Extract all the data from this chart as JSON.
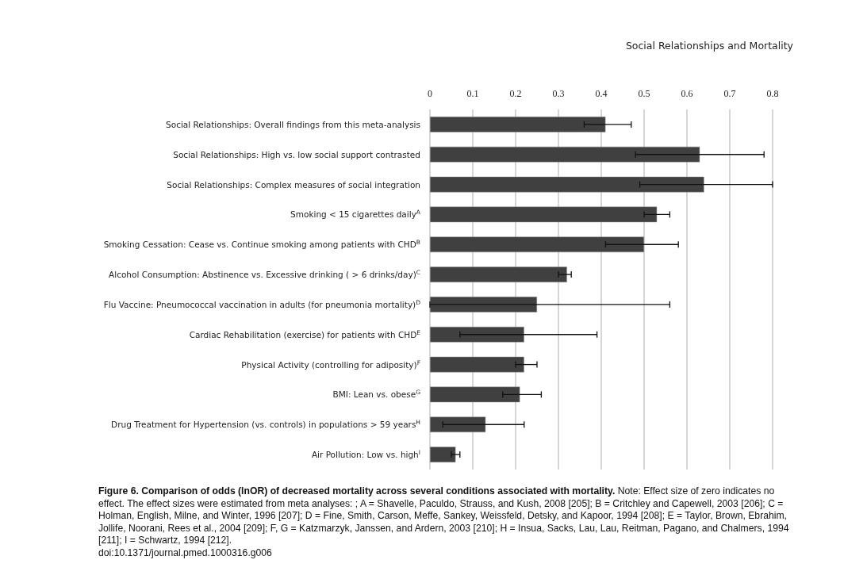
{
  "chart_data": {
    "type": "bar",
    "orientation": "horizontal",
    "title": "Figure 6. Comparison of odds (lnOR) of decreased mortality across several conditions associated with mortality.",
    "annotations": [
      "Social Relationships and Mortality",
      "Note: Effect size of zero indicates no effect. The effect sizes were estimated from meta analyses: ; A = Shavelle, Paculdo, Strauss, and Kush, 2008 [205]; B = Critchley and Capewell, 2003 [206]; C = Holman, English, Milne, and Winter, 1996 [207]; D = Fine, Smith, Carson, Meffe, Sankey, Weissfeld, Detsky, and Kapoor, 1994 [208]; E = Taylor, Brown, Ebrahim, Jollife, Noorani, Rees et al., 2004 [209]; F, G = Katzmarzyk, Janssen, and Ardern, 2003 [210]; H = Insua, Sacks, Lau, Lau, Reitman, Pagano, and Chalmers, 1994 [211]; I = Schwartz, 1994 [212].",
      "doi:10.1371/journal.pmed.1000316.g006"
    ],
    "categories": [
      "Social Relationships: Overall findings from this meta-analysis",
      "Social Relationships: High vs. low social support contrasted",
      "Social Relationships: Complex measures of social integration",
      "Smoking < 15 cigarettes daily$^{A}$",
      "Smoking Cessation: Cease vs. Continue smoking among patients with CHD$^{B}$",
      "Alcohol Consumption: Abstinence vs. Excessive drinking ( > 6 drinks/day)$^{C}$",
      "Flu Vaccine: Pneumococcal vaccination in adults (for pneumonia mortality)$^{D}$",
      "Cardiac Rehabilitation (exercise) for patients with CHD$^{E}$",
      "Physical Activity (controlling for adiposity)$^{F}$",
      "BMI: Lean vs. obese$^{G}$",
      "Drug Treatment for Hypertension (vs. controls) in populations > 59 years$^{H}$",
      "Air Pollution: Low vs. high$^{I}$"
    ],
    "values": [
      0.41,
      0.63,
      0.64,
      0.53,
      0.5,
      0.32,
      0.25,
      0.22,
      0.22,
      0.21,
      0.13,
      0.06
    ],
    "errors": [
      [
        0.36,
        0.47
      ],
      [
        0.48,
        0.78
      ],
      [
        0.49,
        0.8
      ],
      [
        0.5,
        0.56
      ],
      [
        0.41,
        0.58
      ],
      [
        0.3,
        0.33
      ],
      [
        0.0,
        0.56
      ],
      [
        0.07,
        0.39
      ],
      [
        0.2,
        0.25
      ],
      [
        0.17,
        0.26
      ],
      [
        0.03,
        0.22
      ],
      [
        0.05,
        0.07
      ]
    ],
    "color": "#404040",
    "xlim": [
      0,
      0.8
    ],
    "xticks": [
      0,
      0.1,
      0.2,
      0.3,
      0.4,
      0.5,
      0.6,
      0.7,
      0.8
    ],
    "grid": "x"
  }
}
